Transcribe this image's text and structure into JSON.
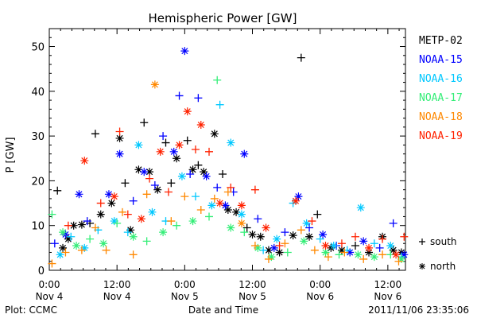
{
  "chart_data": {
    "type": "scatter",
    "title": "Hemispheric Power [GW]",
    "ylabel": "P [GW]",
    "xlabel": "Date and Time",
    "ylim": [
      0,
      54
    ],
    "xlim": [
      0,
      2.63
    ],
    "yticks": [
      0,
      10,
      20,
      30,
      40,
      50
    ],
    "xticks": [
      {
        "x": 0.0,
        "line1": "0:00",
        "line2": "Nov 4"
      },
      {
        "x": 0.5,
        "line1": "12:00",
        "line2": "Nov 4"
      },
      {
        "x": 1.0,
        "line1": "0:00",
        "line2": "Nov 5"
      },
      {
        "x": 1.5,
        "line1": "12:00",
        "line2": "Nov 5"
      },
      {
        "x": 2.0,
        "line1": "0:00",
        "line2": "Nov 6"
      },
      {
        "x": 2.5,
        "line1": "12:00",
        "line2": "Nov 6"
      }
    ],
    "legend": {
      "placement": "right",
      "markers": [
        {
          "symbol": "+",
          "label": "south"
        },
        {
          "symbol": "*",
          "label": "north"
        }
      ]
    },
    "footer_left": "Plot: CCMC",
    "footer_right": "2011/11/06 23:35:06",
    "series": [
      {
        "name": "METP-02",
        "color": "#000000",
        "points": [
          {
            "x": 0.06,
            "y": 17.8,
            "m": "+"
          },
          {
            "x": 0.1,
            "y": 5.0,
            "m": "*"
          },
          {
            "x": 0.14,
            "y": 7.0,
            "m": "*"
          },
          {
            "x": 0.18,
            "y": 10.0,
            "m": "*"
          },
          {
            "x": 0.24,
            "y": 10.2,
            "m": "*"
          },
          {
            "x": 0.3,
            "y": 10.5,
            "m": "+"
          },
          {
            "x": 0.34,
            "y": 30.5,
            "m": "+"
          },
          {
            "x": 0.38,
            "y": 12.5,
            "m": "*"
          },
          {
            "x": 0.46,
            "y": 15.0,
            "m": "*"
          },
          {
            "x": 0.52,
            "y": 29.5,
            "m": "*"
          },
          {
            "x": 0.56,
            "y": 19.5,
            "m": "+"
          },
          {
            "x": 0.6,
            "y": 9.0,
            "m": "*"
          },
          {
            "x": 0.66,
            "y": 22.5,
            "m": "*"
          },
          {
            "x": 0.7,
            "y": 33.0,
            "m": "+"
          },
          {
            "x": 0.74,
            "y": 22.0,
            "m": "*"
          },
          {
            "x": 0.8,
            "y": 18.0,
            "m": "*"
          },
          {
            "x": 0.86,
            "y": 28.5,
            "m": "+"
          },
          {
            "x": 0.9,
            "y": 19.5,
            "m": "+"
          },
          {
            "x": 0.94,
            "y": 25.0,
            "m": "*"
          },
          {
            "x": 1.02,
            "y": 29.0,
            "m": "+"
          },
          {
            "x": 1.06,
            "y": 22.5,
            "m": "*"
          },
          {
            "x": 1.1,
            "y": 23.5,
            "m": "+"
          },
          {
            "x": 1.14,
            "y": 22.0,
            "m": "*"
          },
          {
            "x": 1.22,
            "y": 30.5,
            "m": "*"
          },
          {
            "x": 1.28,
            "y": 21.5,
            "m": "+"
          },
          {
            "x": 1.32,
            "y": 13.5,
            "m": "*"
          },
          {
            "x": 1.38,
            "y": 13.0,
            "m": "*"
          },
          {
            "x": 1.46,
            "y": 9.5,
            "m": "+"
          },
          {
            "x": 1.5,
            "y": 8.0,
            "m": "*"
          },
          {
            "x": 1.56,
            "y": 7.5,
            "m": "*"
          },
          {
            "x": 1.62,
            "y": 4.5,
            "m": "*"
          },
          {
            "x": 1.7,
            "y": 4.0,
            "m": "*"
          },
          {
            "x": 1.8,
            "y": 7.8,
            "m": "*"
          },
          {
            "x": 1.86,
            "y": 47.5,
            "m": "+"
          },
          {
            "x": 1.92,
            "y": 7.5,
            "m": "*"
          },
          {
            "x": 1.98,
            "y": 12.5,
            "m": "+"
          },
          {
            "x": 2.08,
            "y": 5.0,
            "m": "*"
          },
          {
            "x": 2.16,
            "y": 4.5,
            "m": "*"
          },
          {
            "x": 2.26,
            "y": 5.5,
            "m": "+"
          },
          {
            "x": 2.36,
            "y": 4.0,
            "m": "*"
          },
          {
            "x": 2.46,
            "y": 7.5,
            "m": "*"
          },
          {
            "x": 2.54,
            "y": 4.5,
            "m": "*"
          },
          {
            "x": 2.6,
            "y": 4.0,
            "m": "*"
          }
        ]
      },
      {
        "name": "NOAA-15",
        "color": "#0000ff",
        "points": [
          {
            "x": 0.04,
            "y": 6.0,
            "m": "+"
          },
          {
            "x": 0.12,
            "y": 8.0,
            "m": "*"
          },
          {
            "x": 0.22,
            "y": 17.0,
            "m": "*"
          },
          {
            "x": 0.28,
            "y": 11.0,
            "m": "+"
          },
          {
            "x": 0.44,
            "y": 17.0,
            "m": "*"
          },
          {
            "x": 0.52,
            "y": 26.0,
            "m": "*"
          },
          {
            "x": 0.62,
            "y": 15.5,
            "m": "+"
          },
          {
            "x": 0.7,
            "y": 22.0,
            "m": "*"
          },
          {
            "x": 0.78,
            "y": 19.0,
            "m": "+"
          },
          {
            "x": 0.84,
            "y": 30.0,
            "m": "+"
          },
          {
            "x": 0.92,
            "y": 26.5,
            "m": "*"
          },
          {
            "x": 0.96,
            "y": 39.0,
            "m": "+"
          },
          {
            "x": 1.0,
            "y": 49.0,
            "m": "*"
          },
          {
            "x": 1.04,
            "y": 21.5,
            "m": "+"
          },
          {
            "x": 1.1,
            "y": 38.5,
            "m": "+"
          },
          {
            "x": 1.16,
            "y": 21.0,
            "m": "*"
          },
          {
            "x": 1.24,
            "y": 18.5,
            "m": "+"
          },
          {
            "x": 1.3,
            "y": 14.5,
            "m": "*"
          },
          {
            "x": 1.36,
            "y": 17.5,
            "m": "+"
          },
          {
            "x": 1.44,
            "y": 26.0,
            "m": "*"
          },
          {
            "x": 1.54,
            "y": 11.5,
            "m": "+"
          },
          {
            "x": 1.66,
            "y": 5.0,
            "m": "*"
          },
          {
            "x": 1.74,
            "y": 8.5,
            "m": "+"
          },
          {
            "x": 1.84,
            "y": 16.5,
            "m": "*"
          },
          {
            "x": 1.92,
            "y": 9.5,
            "m": "+"
          },
          {
            "x": 2.02,
            "y": 8.0,
            "m": "*"
          },
          {
            "x": 2.12,
            "y": 5.5,
            "m": "+"
          },
          {
            "x": 2.22,
            "y": 4.0,
            "m": "*"
          },
          {
            "x": 2.32,
            "y": 6.5,
            "m": "*"
          },
          {
            "x": 2.44,
            "y": 5.0,
            "m": "+"
          },
          {
            "x": 2.54,
            "y": 10.5,
            "m": "+"
          },
          {
            "x": 2.62,
            "y": 3.5,
            "m": "*"
          }
        ]
      },
      {
        "name": "NOAA-16",
        "color": "#00c8ff",
        "points": [
          {
            "x": 0.08,
            "y": 3.5,
            "m": "*"
          },
          {
            "x": 0.16,
            "y": 7.5,
            "m": "+"
          },
          {
            "x": 0.26,
            "y": 5.0,
            "m": "*"
          },
          {
            "x": 0.36,
            "y": 9.0,
            "m": "+"
          },
          {
            "x": 0.48,
            "y": 11.0,
            "m": "*"
          },
          {
            "x": 0.58,
            "y": 8.5,
            "m": "+"
          },
          {
            "x": 0.66,
            "y": 28.0,
            "m": "*"
          },
          {
            "x": 0.76,
            "y": 13.0,
            "m": "*"
          },
          {
            "x": 0.86,
            "y": 11.0,
            "m": "+"
          },
          {
            "x": 0.98,
            "y": 21.0,
            "m": "*"
          },
          {
            "x": 1.08,
            "y": 16.5,
            "m": "+"
          },
          {
            "x": 1.2,
            "y": 14.5,
            "m": "*"
          },
          {
            "x": 1.26,
            "y": 37.0,
            "m": "+"
          },
          {
            "x": 1.34,
            "y": 28.5,
            "m": "*"
          },
          {
            "x": 1.42,
            "y": 12.5,
            "m": "*"
          },
          {
            "x": 1.58,
            "y": 4.5,
            "m": "+"
          },
          {
            "x": 1.68,
            "y": 7.0,
            "m": "*"
          },
          {
            "x": 1.8,
            "y": 15.0,
            "m": "+"
          },
          {
            "x": 1.9,
            "y": 10.5,
            "m": "*"
          },
          {
            "x": 2.0,
            "y": 7.0,
            "m": "+"
          },
          {
            "x": 2.1,
            "y": 5.5,
            "m": "*"
          },
          {
            "x": 2.2,
            "y": 4.5,
            "m": "+"
          },
          {
            "x": 2.3,
            "y": 14.0,
            "m": "*"
          },
          {
            "x": 2.4,
            "y": 6.0,
            "m": "+"
          },
          {
            "x": 2.52,
            "y": 5.5,
            "m": "*"
          },
          {
            "x": 2.6,
            "y": 3.0,
            "m": "+"
          }
        ]
      },
      {
        "name": "NOAA-17",
        "color": "#33ee77",
        "points": [
          {
            "x": 0.02,
            "y": 12.5,
            "m": "+"
          },
          {
            "x": 0.1,
            "y": 8.5,
            "m": "*"
          },
          {
            "x": 0.2,
            "y": 5.5,
            "m": "*"
          },
          {
            "x": 0.3,
            "y": 7.0,
            "m": "+"
          },
          {
            "x": 0.4,
            "y": 6.0,
            "m": "*"
          },
          {
            "x": 0.5,
            "y": 10.5,
            "m": "+"
          },
          {
            "x": 0.62,
            "y": 7.5,
            "m": "*"
          },
          {
            "x": 0.72,
            "y": 6.5,
            "m": "+"
          },
          {
            "x": 0.84,
            "y": 8.5,
            "m": "*"
          },
          {
            "x": 0.94,
            "y": 10.0,
            "m": "+"
          },
          {
            "x": 1.06,
            "y": 11.0,
            "m": "*"
          },
          {
            "x": 1.18,
            "y": 12.0,
            "m": "+"
          },
          {
            "x": 1.24,
            "y": 42.5,
            "m": "+"
          },
          {
            "x": 1.34,
            "y": 9.5,
            "m": "*"
          },
          {
            "x": 1.44,
            "y": 8.5,
            "m": "+"
          },
          {
            "x": 1.54,
            "y": 5.0,
            "m": "*"
          },
          {
            "x": 1.64,
            "y": 3.0,
            "m": "*"
          },
          {
            "x": 1.76,
            "y": 4.0,
            "m": "+"
          },
          {
            "x": 1.88,
            "y": 6.5,
            "m": "*"
          },
          {
            "x": 2.04,
            "y": 4.0,
            "m": "*"
          },
          {
            "x": 2.14,
            "y": 3.5,
            "m": "+"
          },
          {
            "x": 2.28,
            "y": 3.5,
            "m": "*"
          },
          {
            "x": 2.4,
            "y": 3.0,
            "m": "*"
          },
          {
            "x": 2.52,
            "y": 3.5,
            "m": "+"
          },
          {
            "x": 2.6,
            "y": 2.5,
            "m": "*"
          }
        ]
      },
      {
        "name": "NOAA-18",
        "color": "#ff8800",
        "points": [
          {
            "x": 0.02,
            "y": 1.5,
            "m": "+"
          },
          {
            "x": 0.12,
            "y": 4.0,
            "m": "+"
          },
          {
            "x": 0.24,
            "y": 4.5,
            "m": "+"
          },
          {
            "x": 0.34,
            "y": 9.5,
            "m": "+"
          },
          {
            "x": 0.42,
            "y": 4.5,
            "m": "+"
          },
          {
            "x": 0.54,
            "y": 13.0,
            "m": "+"
          },
          {
            "x": 0.62,
            "y": 3.5,
            "m": "+"
          },
          {
            "x": 0.72,
            "y": 17.0,
            "m": "+"
          },
          {
            "x": 0.78,
            "y": 41.5,
            "m": "*"
          },
          {
            "x": 0.9,
            "y": 11.0,
            "m": "+"
          },
          {
            "x": 1.0,
            "y": 16.5,
            "m": "+"
          },
          {
            "x": 1.12,
            "y": 13.5,
            "m": "+"
          },
          {
            "x": 1.22,
            "y": 16.0,
            "m": "+"
          },
          {
            "x": 1.32,
            "y": 17.5,
            "m": "+"
          },
          {
            "x": 1.42,
            "y": 10.5,
            "m": "*"
          },
          {
            "x": 1.52,
            "y": 5.5,
            "m": "+"
          },
          {
            "x": 1.62,
            "y": 2.5,
            "m": "+"
          },
          {
            "x": 1.74,
            "y": 6.0,
            "m": "+"
          },
          {
            "x": 1.86,
            "y": 9.0,
            "m": "+"
          },
          {
            "x": 1.96,
            "y": 4.5,
            "m": "+"
          },
          {
            "x": 2.06,
            "y": 3.0,
            "m": "+"
          },
          {
            "x": 2.18,
            "y": 4.0,
            "m": "+"
          },
          {
            "x": 2.32,
            "y": 2.5,
            "m": "+"
          },
          {
            "x": 2.46,
            "y": 3.5,
            "m": "+"
          },
          {
            "x": 2.58,
            "y": 2.0,
            "m": "+"
          }
        ]
      },
      {
        "name": "NOAA-19",
        "color": "#ff2200",
        "points": [
          {
            "x": 0.14,
            "y": 10.0,
            "m": "+"
          },
          {
            "x": 0.26,
            "y": 24.5,
            "m": "*"
          },
          {
            "x": 0.38,
            "y": 15.0,
            "m": "+"
          },
          {
            "x": 0.48,
            "y": 16.5,
            "m": "*"
          },
          {
            "x": 0.52,
            "y": 31.0,
            "m": "+"
          },
          {
            "x": 0.58,
            "y": 12.5,
            "m": "+"
          },
          {
            "x": 0.68,
            "y": 11.5,
            "m": "*"
          },
          {
            "x": 0.74,
            "y": 20.5,
            "m": "+"
          },
          {
            "x": 0.82,
            "y": 26.5,
            "m": "*"
          },
          {
            "x": 0.88,
            "y": 17.5,
            "m": "+"
          },
          {
            "x": 0.96,
            "y": 28.0,
            "m": "*"
          },
          {
            "x": 1.02,
            "y": 35.5,
            "m": "*"
          },
          {
            "x": 1.08,
            "y": 27.0,
            "m": "+"
          },
          {
            "x": 1.12,
            "y": 32.5,
            "m": "*"
          },
          {
            "x": 1.18,
            "y": 26.5,
            "m": "+"
          },
          {
            "x": 1.26,
            "y": 15.0,
            "m": "*"
          },
          {
            "x": 1.34,
            "y": 18.5,
            "m": "+"
          },
          {
            "x": 1.42,
            "y": 14.5,
            "m": "*"
          },
          {
            "x": 1.52,
            "y": 18.0,
            "m": "+"
          },
          {
            "x": 1.6,
            "y": 9.5,
            "m": "*"
          },
          {
            "x": 1.7,
            "y": 5.5,
            "m": "+"
          },
          {
            "x": 1.82,
            "y": 15.5,
            "m": "*"
          },
          {
            "x": 1.94,
            "y": 11.0,
            "m": "+"
          },
          {
            "x": 2.04,
            "y": 5.5,
            "m": "*"
          },
          {
            "x": 2.16,
            "y": 6.0,
            "m": "+"
          },
          {
            "x": 2.26,
            "y": 7.5,
            "m": "+"
          },
          {
            "x": 2.36,
            "y": 5.0,
            "m": "*"
          },
          {
            "x": 2.46,
            "y": 7.0,
            "m": "+"
          },
          {
            "x": 2.56,
            "y": 3.5,
            "m": "*"
          },
          {
            "x": 2.62,
            "y": 7.5,
            "m": "+"
          }
        ]
      }
    ]
  }
}
